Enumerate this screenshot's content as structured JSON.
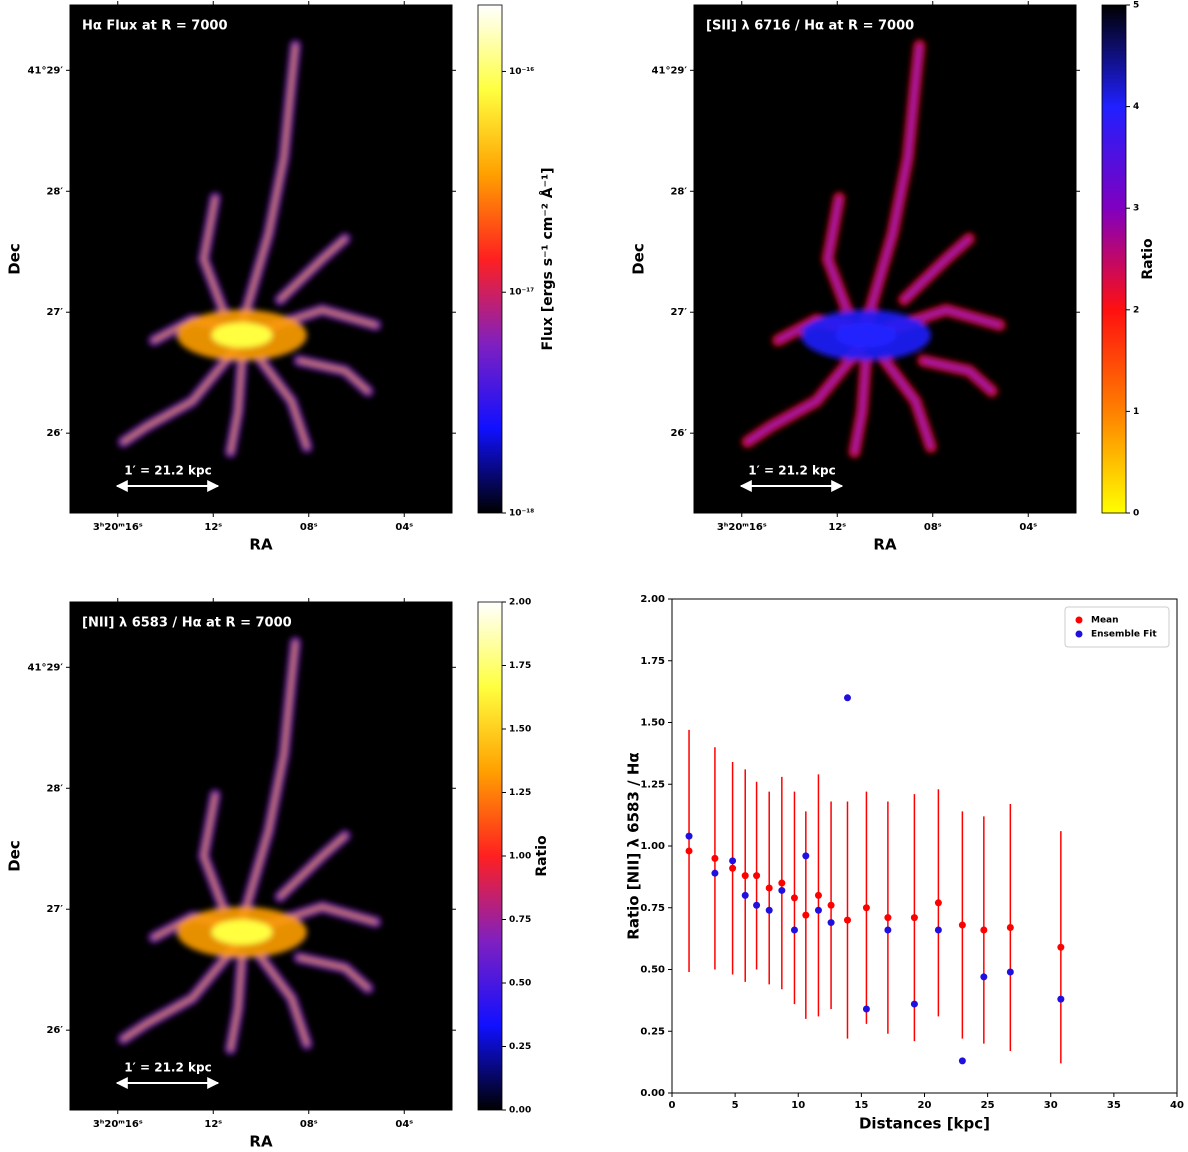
{
  "chart_data": [
    {
      "type": "map",
      "title": "Hα Flux at R = 7000",
      "xlabel": "RA",
      "ylabel": "Dec",
      "xlim": [
        18,
        2
      ],
      "ylim": [
        25.34,
        29.54
      ],
      "xticks": [
        {
          "value": 16,
          "label": "3ʰ20ᵐ16ˢ"
        },
        {
          "value": 12,
          "label": "12ˢ"
        },
        {
          "value": 8,
          "label": "08ˢ"
        },
        {
          "value": 4,
          "label": "04ˢ"
        }
      ],
      "yticks": [
        {
          "value": 26,
          "label": "26′"
        },
        {
          "value": 27,
          "label": "27′"
        },
        {
          "value": 28,
          "label": "28′"
        },
        {
          "value": 29,
          "label": "41°29′"
        }
      ],
      "scale_bar": "1′ = 21.2 kpc",
      "colorbar": {
        "label": "Flux [ergs s⁻¹ cm⁻² Å⁻¹]",
        "log": true,
        "lim": [
          1e-18,
          2e-16
        ],
        "ticks": [
          {
            "value": 1e-18,
            "label": "10⁻¹⁸"
          },
          {
            "value": 1e-17,
            "label": "10⁻¹⁷"
          },
          {
            "value": 1e-16,
            "label": "10⁻¹⁶"
          }
        ],
        "colors": [
          "#000000",
          "#1010ff",
          "#8020c0",
          "#ff2020",
          "#ffa000",
          "#ffff40",
          "#ffffff"
        ]
      }
    },
    {
      "type": "map",
      "title": "[SII] λ 6716 / Hα  at  R = 7000",
      "xlabel": "RA",
      "ylabel": "Dec",
      "xlim": [
        18,
        2
      ],
      "ylim": [
        25.34,
        29.54
      ],
      "xticks": [
        {
          "value": 16,
          "label": "3ʰ20ᵐ16ˢ"
        },
        {
          "value": 12,
          "label": "12ˢ"
        },
        {
          "value": 8,
          "label": "08ˢ"
        },
        {
          "value": 4,
          "label": "04ˢ"
        }
      ],
      "yticks": [
        {
          "value": 26,
          "label": "26′"
        },
        {
          "value": 27,
          "label": "27′"
        },
        {
          "value": 28,
          "label": "28′"
        },
        {
          "value": 29,
          "label": "41°29′"
        }
      ],
      "scale_bar": "1′ = 21.2 kpc",
      "colorbar": {
        "label": "Ratio",
        "log": false,
        "lim": [
          0,
          5
        ],
        "ticks": [
          0,
          1,
          2,
          3,
          4,
          5
        ],
        "colors": [
          "#ffff00",
          "#ff8000",
          "#ff1010",
          "#8000c0",
          "#2020ff",
          "#000000"
        ]
      }
    },
    {
      "type": "map",
      "title": "[NII] λ 6583 / Hα  at  R = 7000",
      "xlabel": "RA",
      "ylabel": "Dec",
      "xlim": [
        18,
        2
      ],
      "ylim": [
        25.34,
        29.54
      ],
      "xticks": [
        {
          "value": 16,
          "label": "3ʰ20ᵐ16ˢ"
        },
        {
          "value": 12,
          "label": "12ˢ"
        },
        {
          "value": 8,
          "label": "08ˢ"
        },
        {
          "value": 4,
          "label": "04ˢ"
        }
      ],
      "yticks": [
        {
          "value": 26,
          "label": "26′"
        },
        {
          "value": 27,
          "label": "27′"
        },
        {
          "value": 28,
          "label": "28′"
        },
        {
          "value": 29,
          "label": "41°29′"
        }
      ],
      "scale_bar": "1′ = 21.2 kpc",
      "colorbar": {
        "label": "Ratio",
        "log": false,
        "lim": [
          0,
          2
        ],
        "ticks": [
          {
            "value": 0,
            "label": "0.00"
          },
          0.25,
          {
            "value": 0.5,
            "label": "0.50"
          },
          0.75,
          {
            "value": 1,
            "label": "1.00"
          },
          1.25,
          {
            "value": 1.5,
            "label": "1.50"
          },
          1.75,
          {
            "value": 2,
            "label": "2.00"
          }
        ],
        "colors": [
          "#000000",
          "#1010ff",
          "#8020c0",
          "#ff2020",
          "#ffa000",
          "#ffff40",
          "#ffffff"
        ]
      }
    },
    {
      "type": "scatter",
      "xlabel": "Distances [kpc]",
      "ylabel": "Ratio [NII] λ 6583 / Hα",
      "xlim": [
        0,
        40
      ],
      "ylim": [
        0,
        2
      ],
      "xticks": [
        0,
        5,
        10,
        15,
        20,
        25,
        30,
        35,
        40
      ],
      "yticks": [
        {
          "value": 0,
          "label": "0.00"
        },
        0.25,
        {
          "value": 0.5,
          "label": "0.50"
        },
        0.75,
        {
          "value": 1,
          "label": "1.00"
        },
        1.25,
        {
          "value": 1.5,
          "label": "1.50"
        },
        1.75,
        {
          "value": 2,
          "label": "2.00"
        }
      ],
      "legend": "upper right",
      "x": [
        1.35,
        3.4,
        4.8,
        5.8,
        6.7,
        7.7,
        8.7,
        9.7,
        10.6,
        11.6,
        12.6,
        13.9,
        15.4,
        17.1,
        19.2,
        21.1,
        23.0,
        24.7,
        26.8,
        30.8
      ],
      "series": [
        {
          "name": "Mean",
          "color": "#ff0000",
          "values": [
            0.98,
            0.95,
            0.91,
            0.88,
            0.88,
            0.83,
            0.85,
            0.79,
            0.72,
            0.8,
            0.76,
            0.7,
            0.75,
            0.71,
            0.71,
            0.77,
            0.68,
            0.66,
            0.67,
            0.59
          ],
          "errors": [
            0.49,
            0.45,
            0.43,
            0.43,
            0.38,
            0.39,
            0.43,
            0.43,
            0.42,
            0.49,
            0.42,
            0.48,
            0.47,
            0.47,
            0.5,
            0.46,
            0.46,
            0.46,
            0.5,
            0.47
          ]
        },
        {
          "name": "Ensemble Fit",
          "color": "#2010e0",
          "values": [
            1.04,
            0.89,
            0.94,
            0.8,
            0.76,
            0.74,
            0.82,
            0.66,
            0.96,
            0.74,
            0.69,
            1.6,
            0.34,
            0.66,
            0.36,
            0.66,
            0.13,
            0.47,
            0.49,
            0.38
          ]
        }
      ]
    }
  ]
}
